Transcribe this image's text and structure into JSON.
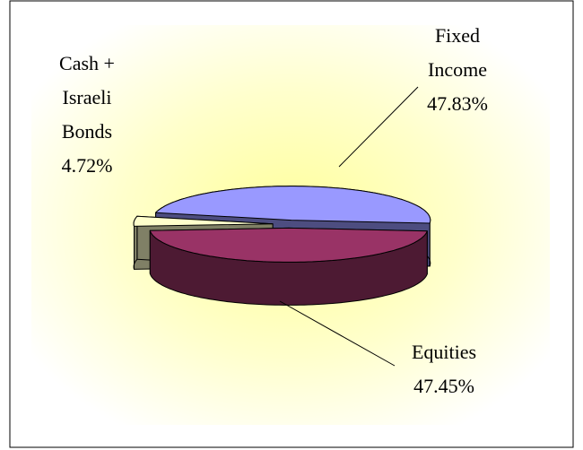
{
  "chart_data": {
    "type": "pie3d",
    "categories": [
      "Equities",
      "Cash + Israeli Bonds",
      "Fixed Income"
    ],
    "values": [
      47.45,
      4.72,
      47.83
    ],
    "value_labels": [
      "47.45%",
      "4.72%",
      "47.83%"
    ],
    "colors": [
      "#993366",
      "#ffffcc",
      "#9999ff"
    ]
  }
}
